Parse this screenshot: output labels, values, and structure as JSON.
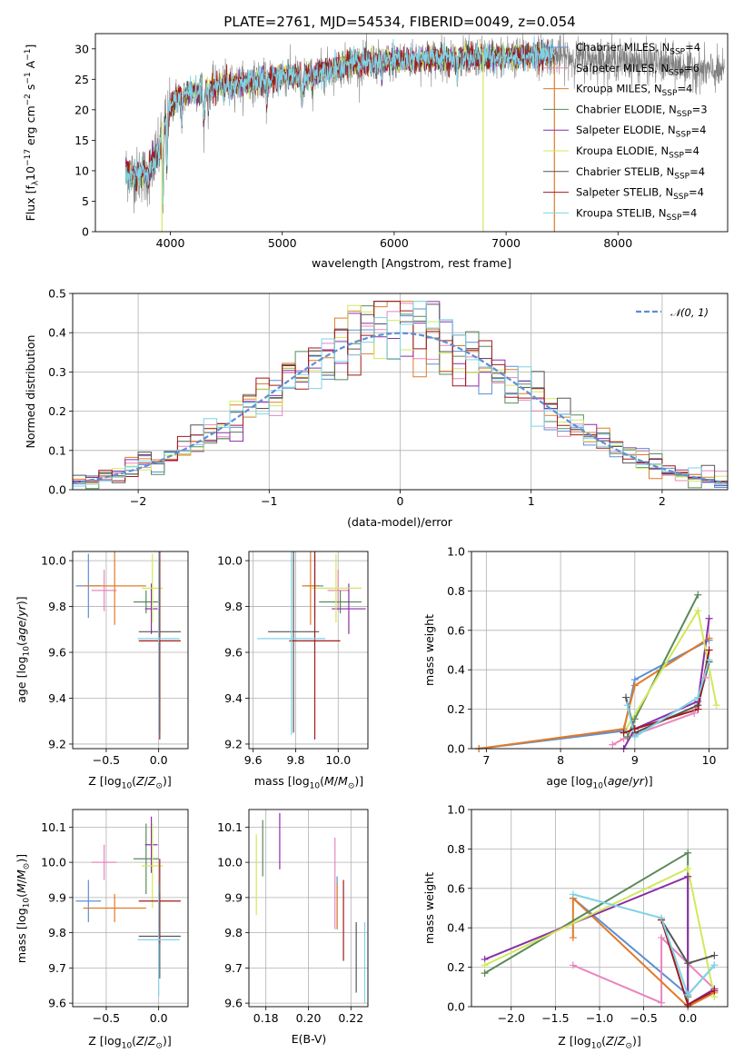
{
  "figure": {
    "title": "PLATE=2761, MJD=54534, FIBERID=0049, z=0.054"
  },
  "colors": {
    "Chabrier MILES": "#5b8fd6",
    "Salpeter MILES": "#e985be",
    "Kroupa MILES": "#e07b28",
    "Chabrier ELODIE": "#5a8a5a",
    "Salpeter ELODIE": "#8a2ea8",
    "Kroupa ELODIE": "#d1e85a",
    "Chabrier STELIB": "#555555",
    "Salpeter STELIB": "#a01a1a",
    "Kroupa STELIB": "#7fd3e6",
    "normal": "#5b8fd6",
    "grid": "#b0b0b0"
  },
  "chart_data": [
    {
      "id": "spectrum",
      "type": "line",
      "xlabel": "wavelength [Angstrom, rest frame]",
      "ylabel": "Flux [f_λ10^-17 erg cm^-2 s^-1 A^-1]",
      "xlim": [
        3330,
        8980
      ],
      "ylim": [
        0,
        32.5
      ],
      "xticks": [
        4000,
        5000,
        6000,
        7000,
        8000
      ],
      "yticks": [
        0,
        5,
        10,
        15,
        20,
        25,
        30
      ],
      "grid": false,
      "legend_position": "top-right",
      "data_range": [
        3600,
        8950
      ],
      "model_range": [
        3600,
        7440
      ],
      "continuum": {
        "x": [
          3600,
          3700,
          3900,
          3960,
          4050,
          4300,
          4500,
          4900,
          5000,
          5200,
          5600,
          6000,
          6400,
          6600,
          7000,
          7400,
          7600,
          8000,
          8400,
          8950
        ],
        "y": [
          10,
          9,
          13,
          19,
          22,
          23.5,
          24,
          25,
          25.5,
          25.5,
          27.5,
          28,
          28.5,
          28.5,
          28.7,
          29,
          28.5,
          28.2,
          27.5,
          26
        ]
      },
      "series_names": [
        "Chabrier MILES",
        "Salpeter MILES",
        "Kroupa MILES",
        "Chabrier ELODIE",
        "Salpeter ELODIE",
        "Kroupa ELODIE",
        "Chabrier STELIB",
        "Salpeter STELIB",
        "Kroupa STELIB"
      ],
      "legend": [
        {
          "name": "Chabrier MILES",
          "n_ssp": "4"
        },
        {
          "name": "Salpeter MILES",
          "n_ssp": "6"
        },
        {
          "name": "Kroupa MILES",
          "n_ssp": "4"
        },
        {
          "name": "Chabrier ELODIE",
          "n_ssp": "3"
        },
        {
          "name": "Salpeter ELODIE",
          "n_ssp": "4"
        },
        {
          "name": "Kroupa ELODIE",
          "n_ssp": "4"
        },
        {
          "name": "Chabrier STELIB",
          "n_ssp": "4"
        },
        {
          "name": "Salpeter STELIB",
          "n_ssp": "4"
        },
        {
          "name": "Kroupa STELIB",
          "n_ssp": "4"
        }
      ]
    },
    {
      "id": "residuals",
      "type": "line",
      "xlabel": "(data-model)/error",
      "ylabel": "Normed distribution",
      "xlim": [
        -2.5,
        2.5
      ],
      "ylim": [
        0,
        0.5
      ],
      "xticks": [
        -2,
        -1,
        0,
        1,
        2
      ],
      "yticks": [
        0.0,
        0.1,
        0.2,
        0.3,
        0.4,
        0.5
      ],
      "grid": true,
      "legend_position": "top-right",
      "legend": [
        {
          "name": "N(0,1)"
        }
      ],
      "bin_width": 0.1
    },
    {
      "id": "age_vs_Z",
      "type": "scatter",
      "xlabel": "Z [log10(Z/Z⊙)]",
      "ylabel": "age  [log10(age/yr)]",
      "xlim": [
        -0.82,
        0.28
      ],
      "ylim": [
        9.18,
        10.04
      ],
      "xticks": [
        -0.5,
        0.0
      ],
      "yticks": [
        9.2,
        9.4,
        9.6,
        9.8,
        10.0
      ],
      "grid": true,
      "points": [
        {
          "series": "Chabrier MILES",
          "x": -0.67,
          "xerr": 0.12,
          "y": 9.89,
          "yerr": 0.14
        },
        {
          "series": "Salpeter MILES",
          "x": -0.52,
          "xerr": 0.12,
          "y": 9.87,
          "yerr": 0.09
        },
        {
          "series": "Kroupa MILES",
          "x": -0.42,
          "xerr": 0.3,
          "y": 9.89,
          "yerr": 0.17
        },
        {
          "series": "Chabrier ELODIE",
          "x": -0.12,
          "xerr": 0.12,
          "y": 9.82,
          "yerr": 0.05
        },
        {
          "series": "Salpeter ELODIE",
          "x": -0.07,
          "xerr": 0.06,
          "y": 9.79,
          "yerr": 0.11
        },
        {
          "series": "Kroupa ELODIE",
          "x": -0.06,
          "xerr": 0.1,
          "y": 9.88,
          "yerr": 0.15
        },
        {
          "series": "Chabrier STELIB",
          "x": 0.01,
          "xerr": 0.2,
          "y": 9.69,
          "yerr": 0.44
        },
        {
          "series": "Salpeter STELIB",
          "x": 0.01,
          "xerr": 0.2,
          "y": 9.65,
          "yerr": 0.43
        },
        {
          "series": "Kroupa STELIB",
          "x": 0.0,
          "xerr": 0.2,
          "y": 9.66,
          "yerr": 0.42
        }
      ]
    },
    {
      "id": "age_vs_mass",
      "type": "scatter",
      "xlabel": "mass [log10(M/M⊙)]",
      "ylabel": "",
      "xlim": [
        9.58,
        10.14
      ],
      "ylim": [
        9.18,
        10.04
      ],
      "xticks": [
        9.6,
        9.8,
        10.0
      ],
      "yticks": [
        9.2,
        9.4,
        9.6,
        9.8,
        10.0
      ],
      "grid": true,
      "points": [
        {
          "series": "Chabrier MILES",
          "x": 9.89,
          "xerr": 0.04,
          "y": 9.89,
          "yerr": 0.14
        },
        {
          "series": "Salpeter MILES",
          "x": 10.0,
          "xerr": 0.05,
          "y": 9.87,
          "yerr": 0.09
        },
        {
          "series": "Kroupa MILES",
          "x": 9.87,
          "xerr": 0.04,
          "y": 9.89,
          "yerr": 0.17
        },
        {
          "series": "Chabrier ELODIE",
          "x": 10.01,
          "xerr": 0.1,
          "y": 9.82,
          "yerr": 0.05
        },
        {
          "series": "Salpeter ELODIE",
          "x": 10.05,
          "xerr": 0.08,
          "y": 9.79,
          "yerr": 0.11
        },
        {
          "series": "Kroupa ELODIE",
          "x": 9.99,
          "xerr": 0.12,
          "y": 9.88,
          "yerr": 0.15
        },
        {
          "series": "Chabrier STELIB",
          "x": 9.79,
          "xerr": 0.12,
          "y": 9.69,
          "yerr": 0.44
        },
        {
          "series": "Salpeter STELIB",
          "x": 9.89,
          "xerr": 0.12,
          "y": 9.65,
          "yerr": 0.43
        },
        {
          "series": "Kroupa STELIB",
          "x": 9.78,
          "xerr": 0.16,
          "y": 9.66,
          "yerr": 0.42
        }
      ]
    },
    {
      "id": "weight_vs_age",
      "type": "line",
      "xlabel": "age  [log10(age/yr)]",
      "ylabel": "mass weight",
      "xlim": [
        6.8,
        10.25
      ],
      "ylim": [
        0,
        1
      ],
      "xticks": [
        7,
        8,
        9,
        10
      ],
      "yticks": [
        0.0,
        0.2,
        0.4,
        0.6,
        0.8,
        1.0
      ],
      "grid": true,
      "series": [
        {
          "name": "Chabrier MILES",
          "x": [
            6.9,
            8.85,
            9.0,
            10.0
          ],
          "y": [
            0.0,
            0.09,
            0.35,
            0.55
          ]
        },
        {
          "name": "Salpeter MILES",
          "x": [
            8.7,
            8.85,
            9.8,
            9.95
          ],
          "y": [
            0.02,
            0.05,
            0.18,
            0.36
          ]
        },
        {
          "name": "Kroupa MILES",
          "x": [
            6.9,
            8.85,
            9.0,
            10.0
          ],
          "y": [
            0.0,
            0.1,
            0.32,
            0.56
          ]
        },
        {
          "name": "Chabrier ELODIE",
          "x": [
            8.9,
            9.0,
            9.85
          ],
          "y": [
            0.06,
            0.15,
            0.78
          ]
        },
        {
          "name": "Salpeter ELODIE",
          "x": [
            8.85,
            9.0,
            9.85,
            10.0
          ],
          "y": [
            0.0,
            0.1,
            0.24,
            0.66
          ]
        },
        {
          "name": "Kroupa ELODIE",
          "x": [
            8.85,
            9.85,
            10.1
          ],
          "y": [
            0.08,
            0.7,
            0.22
          ]
        },
        {
          "name": "Chabrier STELIB",
          "x": [
            8.88,
            9.0,
            9.85,
            10.0
          ],
          "y": [
            0.26,
            0.08,
            0.22,
            0.44
          ]
        },
        {
          "name": "Salpeter STELIB",
          "x": [
            8.85,
            9.0,
            9.85,
            10.0
          ],
          "y": [
            0.08,
            0.1,
            0.2,
            0.5
          ]
        },
        {
          "name": "Kroupa STELIB",
          "x": [
            8.9,
            9.0,
            9.85,
            10.0
          ],
          "y": [
            0.22,
            0.06,
            0.26,
            0.45
          ]
        }
      ]
    },
    {
      "id": "mass_vs_Z",
      "type": "scatter",
      "xlabel": "Z [log10(Z/Z⊙)]",
      "ylabel": "mass [log10(M/M⊙)]",
      "xlim": [
        -0.82,
        0.28
      ],
      "ylim": [
        9.59,
        10.15
      ],
      "xticks": [
        -0.5,
        0.0
      ],
      "yticks": [
        9.6,
        9.7,
        9.8,
        9.9,
        10.0,
        10.1
      ],
      "grid": true,
      "points": [
        {
          "series": "Chabrier MILES",
          "x": -0.67,
          "xerr": 0.12,
          "y": 9.89,
          "yerr": 0.06
        },
        {
          "series": "Salpeter MILES",
          "x": -0.52,
          "xerr": 0.12,
          "y": 10.0,
          "yerr": 0.05
        },
        {
          "series": "Kroupa MILES",
          "x": -0.42,
          "xerr": 0.3,
          "y": 9.87,
          "yerr": 0.04
        },
        {
          "series": "Chabrier ELODIE",
          "x": -0.12,
          "xerr": 0.12,
          "y": 10.01,
          "yerr": 0.1
        },
        {
          "series": "Salpeter ELODIE",
          "x": -0.07,
          "xerr": 0.06,
          "y": 10.05,
          "yerr": 0.08
        },
        {
          "series": "Kroupa ELODIE",
          "x": -0.06,
          "xerr": 0.1,
          "y": 9.99,
          "yerr": 0.12
        },
        {
          "series": "Chabrier STELIB",
          "x": 0.01,
          "xerr": 0.2,
          "y": 9.79,
          "yerr": 0.12
        },
        {
          "series": "Salpeter STELIB",
          "x": 0.01,
          "xerr": 0.2,
          "y": 9.89,
          "yerr": 0.12
        },
        {
          "series": "Kroupa STELIB",
          "x": 0.0,
          "xerr": 0.2,
          "y": 9.78,
          "yerr": 0.16
        }
      ]
    },
    {
      "id": "mass_vs_ebv",
      "type": "scatter",
      "xlabel": "E(B-V)",
      "ylabel": "",
      "xlim": [
        0.172,
        0.228
      ],
      "ylim": [
        9.59,
        10.15
      ],
      "xticks": [
        0.18,
        0.2,
        0.22
      ],
      "yticks": [
        9.6,
        9.7,
        9.8,
        9.9,
        10.0,
        10.1
      ],
      "grid": true,
      "points": [
        {
          "series": "Chabrier MILES",
          "x": 0.2135,
          "y": 9.885,
          "yerr": 0.075
        },
        {
          "series": "Salpeter MILES",
          "x": 0.2125,
          "y": 9.94,
          "yerr": 0.13
        },
        {
          "series": "Kroupa MILES",
          "x": 0.2135,
          "y": 9.875,
          "yerr": 0.065
        },
        {
          "series": "Chabrier ELODIE",
          "x": 0.1785,
          "y": 10.04,
          "yerr": 0.08
        },
        {
          "series": "Salpeter ELODIE",
          "x": 0.1865,
          "y": 10.06,
          "yerr": 0.08
        },
        {
          "series": "Kroupa ELODIE",
          "x": 0.1755,
          "y": 9.965,
          "yerr": 0.115
        },
        {
          "series": "Chabrier STELIB",
          "x": 0.2225,
          "y": 9.73,
          "yerr": 0.1
        },
        {
          "series": "Salpeter STELIB",
          "x": 0.2165,
          "y": 9.835,
          "yerr": 0.115
        },
        {
          "series": "Kroupa STELIB",
          "x": 0.2265,
          "y": 9.715,
          "yerr": 0.115
        }
      ]
    },
    {
      "id": "weight_vs_Z",
      "type": "line",
      "xlabel": "Z [log10(Z/Z⊙)]",
      "ylabel": "mass weight",
      "xlim": [
        -2.45,
        0.45
      ],
      "ylim": [
        0,
        1
      ],
      "xticks": [
        -2.0,
        -1.5,
        -1.0,
        -0.5,
        0.0
      ],
      "yticks": [
        0.0,
        0.2,
        0.4,
        0.6,
        0.8,
        1.0
      ],
      "grid": true,
      "series": [
        {
          "name": "Chabrier MILES",
          "x": [
            -1.3,
            0.0,
            0.3
          ],
          "y": [
            0.55,
            0.06,
            0.21
          ]
        },
        {
          "name": "Salpeter MILES",
          "x": [
            -1.3,
            -0.3,
            -0.3,
            0.3
          ],
          "y": [
            0.21,
            0.02,
            0.35,
            0.09
          ]
        },
        {
          "name": "Kroupa MILES",
          "x": [
            -1.3,
            -1.3,
            0.0,
            0.3
          ],
          "y": [
            0.35,
            0.55,
            0.0,
            0.07
          ]
        },
        {
          "name": "Chabrier ELODIE",
          "x": [
            -2.3,
            0.0,
            0.0
          ],
          "y": [
            0.17,
            0.78,
            0.05
          ]
        },
        {
          "name": "Salpeter ELODIE",
          "x": [
            -2.3,
            0.0,
            0.0,
            0.3
          ],
          "y": [
            0.24,
            0.66,
            0.01,
            0.09
          ]
        },
        {
          "name": "Kroupa ELODIE",
          "x": [
            -2.3,
            0.0,
            0.3
          ],
          "y": [
            0.21,
            0.7,
            0.05
          ]
        },
        {
          "name": "Chabrier STELIB",
          "x": [
            -0.3,
            0.0,
            0.3
          ],
          "y": [
            0.44,
            0.22,
            0.26
          ]
        },
        {
          "name": "Salpeter STELIB",
          "x": [
            -0.3,
            0.0,
            0.3
          ],
          "y": [
            0.44,
            0.01,
            0.08
          ]
        },
        {
          "name": "Kroupa STELIB",
          "x": [
            -1.3,
            -0.3,
            0.0,
            0.3
          ],
          "y": [
            0.57,
            0.45,
            0.06,
            0.21
          ]
        }
      ]
    }
  ]
}
